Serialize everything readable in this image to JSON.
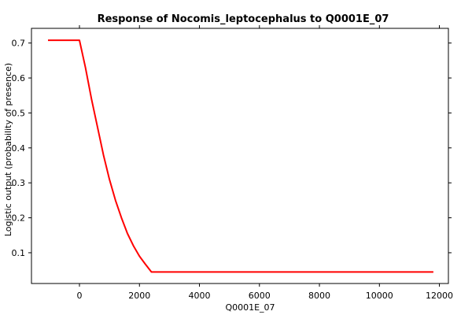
{
  "chart_data": {
    "type": "line",
    "title": "Response of Nocomis_leptocephalus to Q0001E_07",
    "xlabel": "Q0001E_07",
    "ylabel": "Logistic output (probability of presence)",
    "xlim": [
      -1600,
      12300
    ],
    "ylim": [
      0.012,
      0.742
    ],
    "x_ticks": [
      0,
      2000,
      4000,
      6000,
      8000,
      10000,
      12000
    ],
    "y_ticks": [
      0.1,
      0.2,
      0.3,
      0.4,
      0.5,
      0.6,
      0.7
    ],
    "grid": true,
    "series": [
      {
        "color": "#ff0000",
        "x": [
          -1050,
          0,
          200,
          400,
          600,
          800,
          1000,
          1200,
          1400,
          1600,
          1800,
          2000,
          2200,
          2400,
          3000,
          4000,
          6000,
          8000,
          10000,
          11800
        ],
        "y": [
          0.708,
          0.708,
          0.63,
          0.54,
          0.46,
          0.38,
          0.31,
          0.25,
          0.2,
          0.155,
          0.12,
          0.09,
          0.067,
          0.045,
          0.045,
          0.045,
          0.045,
          0.045,
          0.045,
          0.045
        ]
      }
    ]
  }
}
